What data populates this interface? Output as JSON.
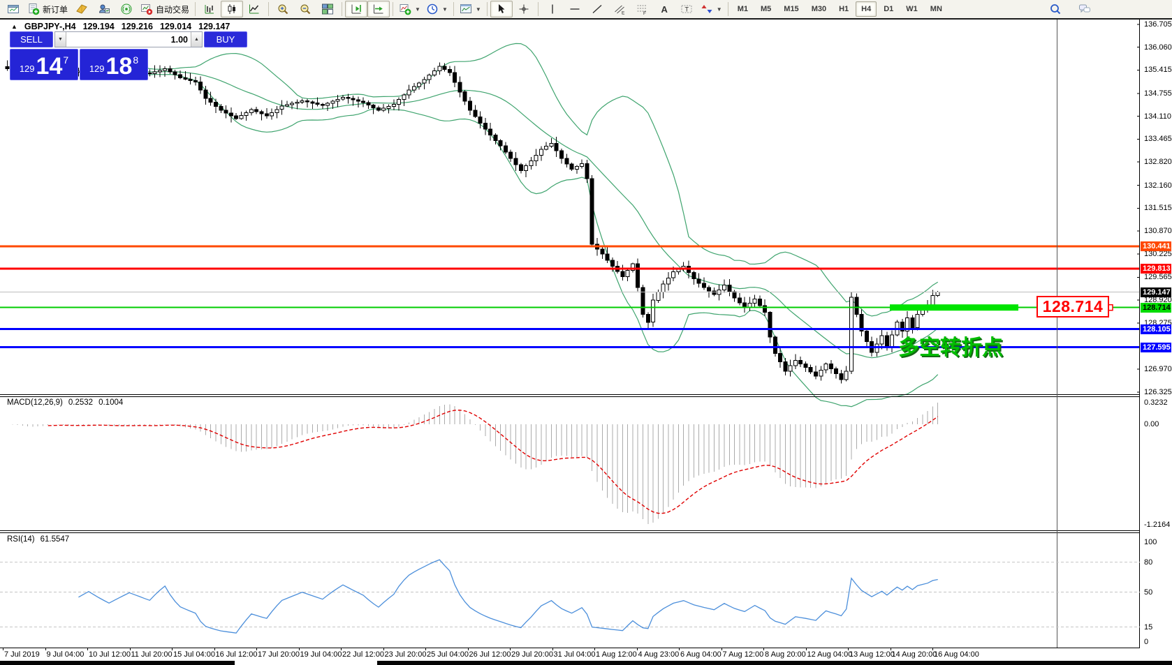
{
  "toolbar": {
    "new_order_label": "新订单",
    "autotrading_label": "自动交易",
    "items": [
      {
        "icon": "window-icon",
        "name": "window-menu"
      },
      {
        "icon": "new-order-icon",
        "name": "new-order-button",
        "label": "新订单"
      },
      {
        "icon": "metaeditor-icon",
        "name": "metaeditor-button"
      },
      {
        "icon": "profile-icon",
        "name": "publisher-button"
      },
      {
        "icon": "signals-icon",
        "name": "signals-button"
      },
      {
        "icon": "autotrading-icon",
        "name": "autotrading-button",
        "label": "自动交易"
      },
      {
        "sep": true
      },
      {
        "icon": "bar-chart-icon",
        "name": "bar-chart-button"
      },
      {
        "icon": "candlestick-icon",
        "name": "candlestick-button",
        "active": true
      },
      {
        "icon": "line-chart-icon",
        "name": "line-chart-button"
      },
      {
        "sep": true
      },
      {
        "icon": "zoom-in-icon",
        "name": "zoom-in-button"
      },
      {
        "icon": "zoom-out-icon",
        "name": "zoom-out-button"
      },
      {
        "icon": "tile-windows-icon",
        "name": "tile-windows-button"
      },
      {
        "sep": true
      },
      {
        "icon": "chart-shift-icon",
        "name": "chart-shift-button",
        "active": true
      },
      {
        "icon": "auto-scroll-icon",
        "name": "auto-scroll-button",
        "active": true
      },
      {
        "sep": true
      },
      {
        "icon": "indicators-icon",
        "name": "indicators-button",
        "caret": true
      },
      {
        "icon": "periods-icon",
        "name": "periods-button",
        "caret": true
      },
      {
        "sep": true
      },
      {
        "icon": "templates-icon",
        "name": "templates-button",
        "caret": true
      },
      {
        "sep": true
      },
      {
        "icon": "cursor-icon",
        "name": "cursor-button",
        "active": true
      },
      {
        "icon": "crosshair-icon",
        "name": "crosshair-button"
      },
      {
        "sep": true
      },
      {
        "icon": "vline-icon",
        "name": "vertical-line-button"
      },
      {
        "icon": "hline-icon",
        "name": "horizontal-line-button"
      },
      {
        "icon": "trendline-icon",
        "name": "trendline-button"
      },
      {
        "icon": "channel-icon",
        "name": "equidistant-channel-button"
      },
      {
        "icon": "fibonacci-icon",
        "name": "fibonacci-button"
      },
      {
        "icon": "text-icon",
        "name": "text-button"
      },
      {
        "icon": "label-icon",
        "name": "text-label-button"
      },
      {
        "icon": "shapes-icon",
        "name": "arrows-button",
        "caret": true
      },
      {
        "sep": true
      }
    ],
    "timeframes": [
      "M1",
      "M5",
      "M15",
      "M30",
      "H1",
      "H4",
      "D1",
      "W1",
      "MN"
    ],
    "active_timeframe": "H4",
    "right_icons": [
      {
        "icon": "search-icon",
        "name": "search-button"
      },
      {
        "icon": "community-icon",
        "name": "community-button"
      }
    ]
  },
  "chart": {
    "header": {
      "collapse_icon": "▲",
      "symbol": "GBPJPY-,H4",
      "open": "129.194",
      "high": "129.216",
      "low": "129.014",
      "close": "129.147"
    },
    "trade_panel": {
      "sell_label": "SELL",
      "buy_label": "BUY",
      "volume": "1.00",
      "decrease_glyph": "▼",
      "increase_glyph": "▲",
      "sell_price": {
        "prefix": "129",
        "big": "14",
        "sup": "7"
      },
      "buy_price": {
        "prefix": "129",
        "big": "18",
        "sup": "8"
      }
    },
    "price_axis": {
      "ticks": [
        "136.705",
        "136.060",
        "135.415",
        "134.755",
        "134.110",
        "133.465",
        "132.820",
        "132.160",
        "131.515",
        "130.870",
        "130.225",
        "129.565",
        "128.920",
        "128.275",
        "126.970",
        "126.325"
      ],
      "labels": [
        {
          "text": "130.441",
          "bg": "#FF4800",
          "fg": "#FFFFFF",
          "price": 130.441
        },
        {
          "text": "129.813",
          "bg": "#FF0000",
          "fg": "#FFFFFF",
          "price": 129.813
        },
        {
          "text": "129.147",
          "bg": "#000000",
          "fg": "#FFFFFF",
          "price": 129.147
        },
        {
          "text": "128.714",
          "bg": "#00DC00",
          "fg": "#000000",
          "price": 128.714
        },
        {
          "text": "128.105",
          "bg": "#0000FF",
          "fg": "#FFFFFF",
          "price": 128.105
        },
        {
          "text": "127.595",
          "bg": "#0000FF",
          "fg": "#FFFFFF",
          "price": 127.595
        }
      ]
    },
    "time_axis": {
      "labels": [
        "7 Jul 2019",
        "9 Jul 04:00",
        "10 Jul 12:00",
        "11 Jul 20:00",
        "15 Jul 04:00",
        "16 Jul 12:00",
        "17 Jul 20:00",
        "19 Jul 04:00",
        "22 Jul 12:00",
        "23 Jul 20:00",
        "25 Jul 04:00",
        "26 Jul 12:00",
        "29 Jul 20:00",
        "31 Jul 04:00",
        "1 Aug 12:00",
        "4 Aug 23:00",
        "6 Aug 04:00",
        "7 Aug 12:00",
        "8 Aug 20:00",
        "12 Aug 04:00",
        "13 Aug 12:00",
        "14 Aug 20:00",
        "16 Aug 04:00"
      ]
    },
    "annotations": {
      "level_callout": {
        "text": "128.714",
        "color": "#FF0000"
      },
      "turning_point": {
        "text": "多空转折点",
        "color": "#00BE00"
      }
    }
  },
  "macd": {
    "label": "MACD(12,26,9)",
    "value_main": "0.2532",
    "value_signal": "0.1004",
    "ticks": [
      "0.3232",
      "0.00",
      "-1.2164"
    ]
  },
  "rsi": {
    "label": "RSI(14)",
    "value": "61.5547",
    "ticks": [
      "100",
      "80",
      "50",
      "15",
      "0"
    ],
    "levels": [
      80,
      50,
      15
    ]
  },
  "chart_data": {
    "type": "candlestick",
    "symbol": "GBPJPY-",
    "timeframe": "H4",
    "title": "GBPJPY-,H4",
    "ohlc_current": {
      "open": 129.194,
      "high": 129.216,
      "low": 129.014,
      "close": 129.147
    },
    "bars_count": 184,
    "price_range_visible": [
      126.325,
      136.705
    ],
    "time_start": "7 Jul 2019",
    "time_end": "16 Aug 04:00",
    "close_keypoints": [
      [
        0,
        135.45
      ],
      [
        4,
        135.28
      ],
      [
        8,
        135.5
      ],
      [
        12,
        135.32
      ],
      [
        16,
        135.45
      ],
      [
        20,
        135.3
      ],
      [
        24,
        135.4
      ],
      [
        28,
        135.32
      ],
      [
        31,
        135.45
      ],
      [
        34,
        135.2
      ],
      [
        37,
        135.08
      ],
      [
        39,
        134.62
      ],
      [
        42,
        134.28
      ],
      [
        45,
        134.05
      ],
      [
        48,
        134.3
      ],
      [
        51,
        134.12
      ],
      [
        54,
        134.4
      ],
      [
        58,
        134.55
      ],
      [
        62,
        134.42
      ],
      [
        66,
        134.65
      ],
      [
        70,
        134.5
      ],
      [
        73,
        134.28
      ],
      [
        76,
        134.45
      ],
      [
        79,
        134.85
      ],
      [
        82,
        135.15
      ],
      [
        85,
        135.52
      ],
      [
        87,
        135.35
      ],
      [
        89,
        134.8
      ],
      [
        91,
        134.28
      ],
      [
        93,
        133.92
      ],
      [
        95,
        133.58
      ],
      [
        97,
        133.28
      ],
      [
        99,
        132.92
      ],
      [
        101,
        132.58
      ],
      [
        103,
        132.85
      ],
      [
        105,
        133.18
      ],
      [
        107,
        133.35
      ],
      [
        109,
        132.92
      ],
      [
        111,
        132.62
      ],
      [
        113,
        132.78
      ],
      [
        114,
        132.35
      ],
      [
        115,
        130.5
      ],
      [
        117,
        130.22
      ],
      [
        119,
        129.88
      ],
      [
        121,
        129.58
      ],
      [
        123,
        129.95
      ],
      [
        124,
        129.28
      ],
      [
        125,
        128.52
      ],
      [
        126,
        128.3
      ],
      [
        127,
        128.92
      ],
      [
        129,
        129.38
      ],
      [
        131,
        129.72
      ],
      [
        133,
        129.88
      ],
      [
        135,
        129.52
      ],
      [
        137,
        129.28
      ],
      [
        139,
        129.08
      ],
      [
        141,
        129.35
      ],
      [
        143,
        128.98
      ],
      [
        145,
        128.72
      ],
      [
        147,
        128.95
      ],
      [
        149,
        128.58
      ],
      [
        150,
        127.88
      ],
      [
        151,
        127.42
      ],
      [
        152,
        127.18
      ],
      [
        153,
        126.92
      ],
      [
        155,
        127.22
      ],
      [
        157,
        127.02
      ],
      [
        159,
        126.78
      ],
      [
        161,
        127.12
      ],
      [
        163,
        126.85
      ],
      [
        164,
        126.68
      ],
      [
        165,
        126.92
      ],
      [
        166,
        129.0
      ],
      [
        168,
        128.05
      ],
      [
        170,
        127.45
      ],
      [
        172,
        127.92
      ],
      [
        173,
        127.58
      ],
      [
        175,
        128.3
      ],
      [
        176,
        128.05
      ],
      [
        177,
        128.42
      ],
      [
        178,
        128.15
      ],
      [
        179,
        128.52
      ],
      [
        181,
        128.78
      ],
      [
        182,
        129.05
      ],
      [
        183,
        129.147
      ]
    ],
    "indicators": [
      {
        "name": "Bollinger Bands",
        "period": 20,
        "deviation": 2,
        "color": "#3FA46E"
      },
      {
        "name": "MACD",
        "params": "12,26,9",
        "value_main": 0.2532,
        "value_signal": 0.1004,
        "histogram_color": "#ABABAB",
        "signal_color": "#E00000",
        "scale": [
          -1.2164,
          0.3232
        ]
      },
      {
        "name": "RSI",
        "period": 14,
        "value": 61.5547,
        "color": "#4C8FDB",
        "levels": [
          80,
          50,
          15
        ],
        "scale": [
          0,
          100
        ]
      }
    ],
    "hlines": [
      {
        "price": 130.441,
        "color": "#FF4800",
        "width": 3
      },
      {
        "price": 129.813,
        "color": "#FF0000",
        "width": 3
      },
      {
        "price": 128.714,
        "color": "#00CC00",
        "width": 2
      },
      {
        "price": 128.105,
        "color": "#0000FF",
        "width": 3
      },
      {
        "price": 127.595,
        "color": "#0000FF",
        "width": 3
      }
    ],
    "current_price": 129.147,
    "highlight_level": {
      "price": 128.714,
      "color": "#00E400"
    }
  }
}
